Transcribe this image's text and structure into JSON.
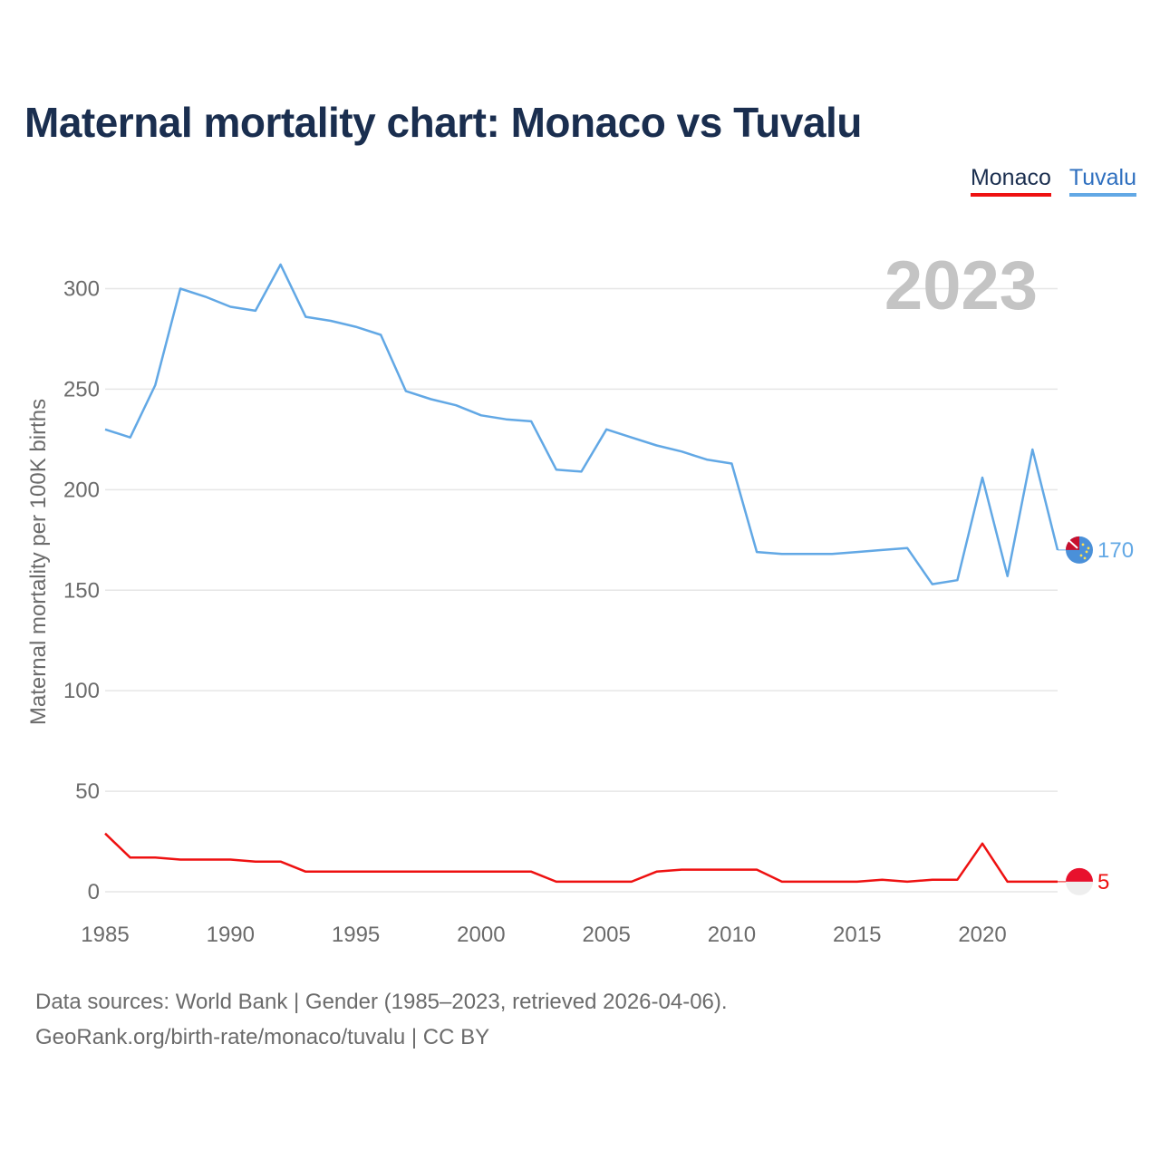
{
  "title": "Maternal mortality chart: Monaco vs Tuvalu",
  "legend": [
    {
      "name": "Monaco",
      "color": "#ee1111"
    },
    {
      "name": "Tuvalu",
      "color": "#62a8e5"
    }
  ],
  "footer": {
    "line1": "Data sources: World Bank | Gender (1985–2023, retrieved 2026-04-06).",
    "line2": "GeoRank.org/birth-rate/monaco/tuvalu | CC BY"
  },
  "chart_data": {
    "type": "line",
    "title": "Maternal mortality chart: Monaco vs Tuvalu",
    "xlabel": "",
    "ylabel": "Maternal mortality per 100K births",
    "year_label": "2023",
    "xlim": [
      1985,
      2023
    ],
    "ylim": [
      0,
      320
    ],
    "x_ticks": [
      1985,
      1990,
      1995,
      2000,
      2005,
      2010,
      2015,
      2020
    ],
    "y_ticks": [
      0,
      50,
      100,
      150,
      200,
      250,
      300
    ],
    "grid": true,
    "x": [
      1985,
      1986,
      1987,
      1988,
      1989,
      1990,
      1991,
      1992,
      1993,
      1994,
      1995,
      1996,
      1997,
      1998,
      1999,
      2000,
      2001,
      2002,
      2003,
      2004,
      2005,
      2006,
      2007,
      2008,
      2009,
      2010,
      2011,
      2012,
      2013,
      2014,
      2015,
      2016,
      2017,
      2018,
      2019,
      2020,
      2021,
      2022,
      2023
    ],
    "series": [
      {
        "name": "Tuvalu",
        "color": "#62a8e5",
        "end_label": "170",
        "values": [
          230,
          226,
          252,
          300,
          296,
          291,
          289,
          312,
          286,
          284,
          281,
          277,
          249,
          245,
          242,
          237,
          235,
          234,
          210,
          209,
          230,
          226,
          222,
          219,
          215,
          213,
          169,
          168,
          168,
          168,
          169,
          170,
          171,
          153,
          155,
          206,
          157,
          220,
          170
        ]
      },
      {
        "name": "Monaco",
        "color": "#ee1111",
        "end_label": "5",
        "values": [
          29,
          17,
          17,
          16,
          16,
          16,
          15,
          15,
          10,
          10,
          10,
          10,
          10,
          10,
          10,
          10,
          10,
          10,
          5,
          5,
          5,
          5,
          10,
          11,
          11,
          11,
          11,
          5,
          5,
          5,
          5,
          6,
          5,
          6,
          6,
          24,
          5,
          5,
          5
        ]
      }
    ]
  }
}
